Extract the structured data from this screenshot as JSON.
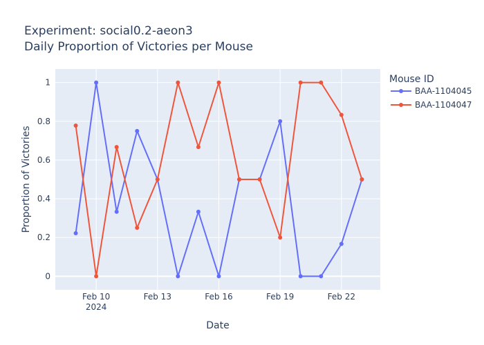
{
  "chart_data": {
    "type": "line",
    "title": "Experiment: social0.2-aeon3",
    "subtitle": "Daily Proportion of Victories per Mouse",
    "xlabel": "Date",
    "ylabel": "Proportion of Victories",
    "legend_title": "Mouse ID",
    "legend_position": "top-right",
    "x": [
      "2024-02-09",
      "2024-02-10",
      "2024-02-11",
      "2024-02-12",
      "2024-02-13",
      "2024-02-14",
      "2024-02-15",
      "2024-02-16",
      "2024-02-17",
      "2024-02-18",
      "2024-02-19",
      "2024-02-20",
      "2024-02-21",
      "2024-02-22",
      "2024-02-23"
    ],
    "x_range": [
      "2024-02-08",
      "2024-02-23.9"
    ],
    "x_ticks": [
      {
        "date": "2024-02-10",
        "label": "Feb 10",
        "sublabel": "2024"
      },
      {
        "date": "2024-02-13",
        "label": "Feb 13",
        "sublabel": ""
      },
      {
        "date": "2024-02-16",
        "label": "Feb 16",
        "sublabel": ""
      },
      {
        "date": "2024-02-19",
        "label": "Feb 19",
        "sublabel": ""
      },
      {
        "date": "2024-02-22",
        "label": "Feb 22",
        "sublabel": ""
      }
    ],
    "y_range": [
      -0.07,
      1.07
    ],
    "y_ticks": [
      0,
      0.2,
      0.4,
      0.6,
      0.8,
      1
    ],
    "y_tick_labels": [
      "0",
      "0.2",
      "0.4",
      "0.6",
      "0.8",
      "1"
    ],
    "grid": true,
    "series": [
      {
        "name": "BAA-1104045",
        "color": "#636efa",
        "values": [
          0.222,
          1,
          0.333,
          0.75,
          0.5,
          0,
          0.333,
          0,
          0.5,
          0.5,
          0.8,
          0,
          0,
          0.167,
          0.5
        ]
      },
      {
        "name": "BAA-1104047",
        "color": "#ef553b",
        "values": [
          0.778,
          0,
          0.667,
          0.25,
          0.5,
          1,
          0.667,
          1,
          0.5,
          0.5,
          0.2,
          1,
          1,
          0.833,
          0.5
        ]
      }
    ]
  }
}
